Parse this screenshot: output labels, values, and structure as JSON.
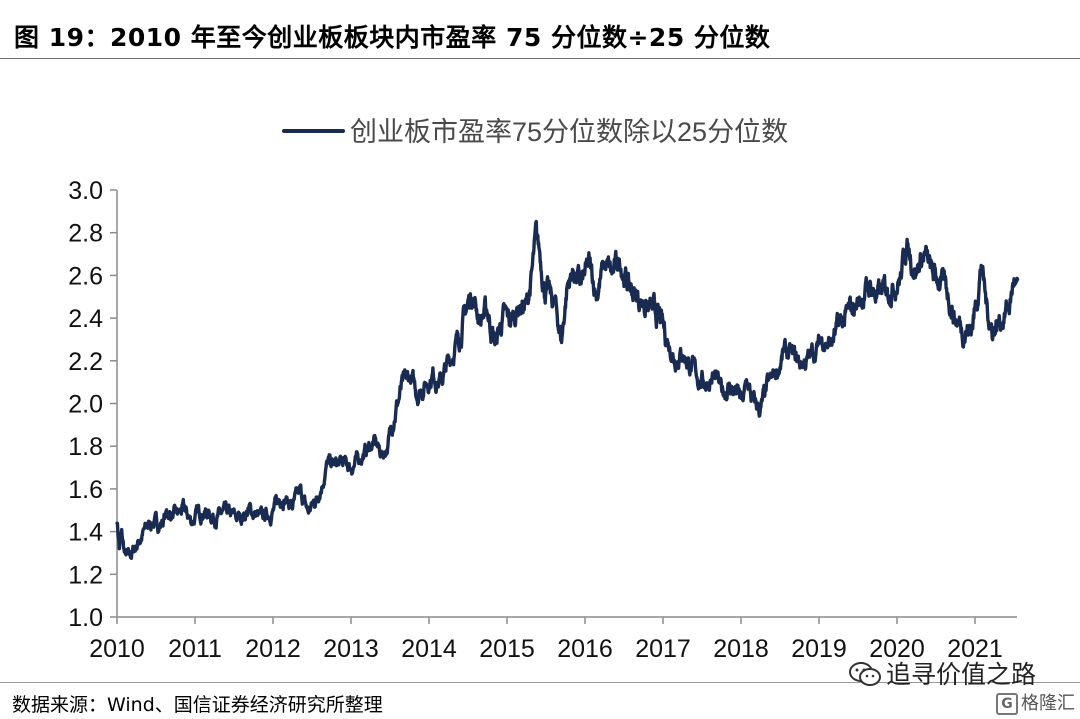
{
  "figure": {
    "title": "图 19：2010 年至今创业板板块内市盈率 75 分位数÷25 分位数",
    "source": "数据来源：Wind、国信证券经济研究所整理",
    "watermark": "追寻价值之路",
    "brand": "格隆汇"
  },
  "chart_data": {
    "type": "line",
    "title": "",
    "xlabel": "",
    "ylabel": "",
    "ylim": [
      1.0,
      3.0
    ],
    "xlim": [
      2010,
      2021.55
    ],
    "y_ticks": [
      "1.0",
      "1.2",
      "1.4",
      "1.6",
      "1.8",
      "2.0",
      "2.2",
      "2.4",
      "2.6",
      "2.8",
      "3.0"
    ],
    "x_ticks": [
      "2010",
      "2011",
      "2012",
      "2013",
      "2014",
      "2015",
      "2016",
      "2017",
      "2018",
      "2019",
      "2020",
      "2021"
    ],
    "legend": "top-center",
    "grid": false,
    "colors": {
      "series": "#1a2b52",
      "axis": "#8c8c8c"
    },
    "series": [
      {
        "name": "创业板市盈率75分位数除以25分位数",
        "x": [
          2010.0,
          2010.03,
          2010.06,
          2010.1,
          2010.15,
          2010.2,
          2010.27,
          2010.35,
          2010.45,
          2010.55,
          2010.65,
          2010.75,
          2010.85,
          2010.95,
          2011.1,
          2011.25,
          2011.4,
          2011.55,
          2011.7,
          2011.85,
          2012.0,
          2012.12,
          2012.25,
          2012.35,
          2012.45,
          2012.55,
          2012.62,
          2012.7,
          2012.8,
          2012.9,
          2013.0,
          2013.1,
          2013.2,
          2013.3,
          2013.4,
          2013.47,
          2013.55,
          2013.65,
          2013.75,
          2013.85,
          2013.95,
          2014.05,
          2014.15,
          2014.25,
          2014.35,
          2014.45,
          2014.55,
          2014.65,
          2014.75,
          2014.85,
          2014.95,
          2015.05,
          2015.15,
          2015.25,
          2015.32,
          2015.37,
          2015.42,
          2015.48,
          2015.55,
          2015.62,
          2015.7,
          2015.77,
          2015.85,
          2015.95,
          2016.05,
          2016.15,
          2016.25,
          2016.35,
          2016.45,
          2016.55,
          2016.65,
          2016.75,
          2016.85,
          2016.95,
          2017.05,
          2017.15,
          2017.25,
          2017.35,
          2017.45,
          2017.55,
          2017.65,
          2017.75,
          2017.85,
          2017.95,
          2018.02,
          2018.08,
          2018.15,
          2018.25,
          2018.35,
          2018.45,
          2018.55,
          2018.65,
          2018.75,
          2018.85,
          2018.95,
          2019.05,
          2019.15,
          2019.25,
          2019.35,
          2019.45,
          2019.55,
          2019.65,
          2019.75,
          2019.85,
          2019.95,
          2020.05,
          2020.12,
          2020.18,
          2020.25,
          2020.35,
          2020.45,
          2020.55,
          2020.65,
          2020.75,
          2020.85,
          2020.95,
          2021.02,
          2021.08,
          2021.15,
          2021.22,
          2021.3,
          2021.38,
          2021.45,
          2021.5,
          2021.55
        ],
        "y": [
          1.46,
          1.33,
          1.38,
          1.29,
          1.27,
          1.3,
          1.35,
          1.4,
          1.45,
          1.43,
          1.49,
          1.47,
          1.5,
          1.45,
          1.5,
          1.47,
          1.48,
          1.46,
          1.5,
          1.46,
          1.5,
          1.57,
          1.52,
          1.58,
          1.49,
          1.55,
          1.62,
          1.72,
          1.71,
          1.72,
          1.7,
          1.74,
          1.78,
          1.82,
          1.76,
          1.8,
          1.95,
          2.07,
          2.12,
          2.05,
          2.09,
          2.14,
          2.1,
          2.19,
          2.28,
          2.4,
          2.52,
          2.4,
          2.43,
          2.28,
          2.4,
          2.38,
          2.46,
          2.45,
          2.6,
          2.77,
          2.7,
          2.55,
          2.5,
          2.45,
          2.3,
          2.55,
          2.62,
          2.55,
          2.64,
          2.52,
          2.65,
          2.6,
          2.67,
          2.56,
          2.5,
          2.48,
          2.43,
          2.4,
          2.3,
          2.22,
          2.24,
          2.18,
          2.12,
          2.1,
          2.13,
          2.05,
          2.08,
          2.05,
          2.0,
          2.1,
          2.0,
          1.97,
          2.08,
          2.14,
          2.24,
          2.22,
          2.19,
          2.2,
          2.25,
          2.3,
          2.28,
          2.35,
          2.4,
          2.45,
          2.5,
          2.55,
          2.5,
          2.53,
          2.56,
          2.6,
          2.75,
          2.68,
          2.63,
          2.7,
          2.6,
          2.58,
          2.52,
          2.4,
          2.35,
          2.35,
          2.48,
          2.66,
          2.45,
          2.35,
          2.38,
          2.42,
          2.47,
          2.58,
          2.5
        ]
      }
    ]
  }
}
